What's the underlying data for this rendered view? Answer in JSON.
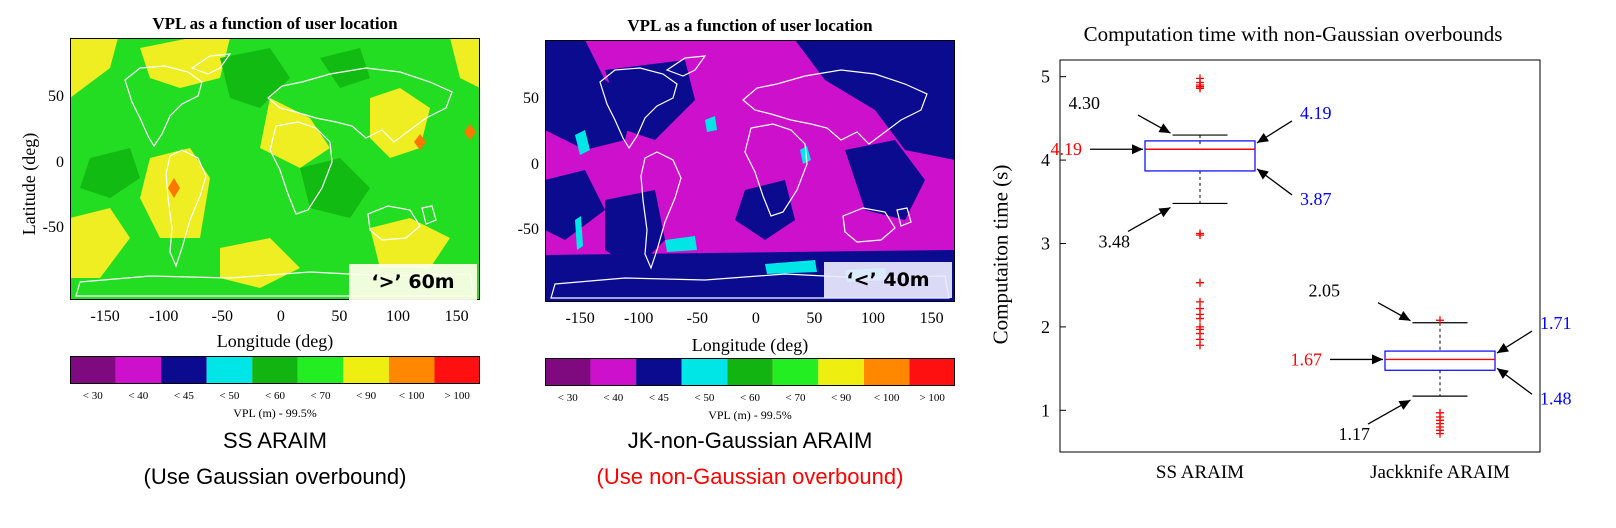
{
  "maps": [
    {
      "title": "VPL as a function of user location",
      "xlabel": "Longitude (deg)",
      "ylabel": "Latitude (deg)",
      "xticks": [
        "-150",
        "-100",
        "-50",
        "0",
        "50",
        "100",
        "150"
      ],
      "yticks": [
        "50",
        "0",
        "-50"
      ],
      "tag": "‘>’ 60m",
      "base_color": "#22dd22",
      "pattern_colors": [
        "#11bb11",
        "#eeee22",
        "#ff7700"
      ],
      "colorbar": {
        "colors": [
          "#7f0a7f",
          "#cc10cc",
          "#0b0b90",
          "#00e6e6",
          "#11b411",
          "#22ee22",
          "#eeee11",
          "#ff8800",
          "#ff1010"
        ],
        "labels": [
          "< 30",
          "< 40",
          "< 45",
          "< 50",
          "< 60",
          "< 70",
          "< 90",
          "< 100",
          "> 100"
        ],
        "title": "VPL (m) - 99.5%"
      },
      "caption_line1": "SS ARAIM",
      "caption_line2": "(Use Gaussian overbound)",
      "caption_line2_color": "#000000"
    },
    {
      "title": "VPL as a function of user location",
      "xlabel": "Longitude (deg)",
      "ylabel": "",
      "xticks": [
        "-150",
        "-100",
        "-50",
        "0",
        "50",
        "100",
        "150"
      ],
      "yticks": [
        "50",
        "0",
        "-50"
      ],
      "tag": "‘<’ 40m",
      "base_color": "#cc10cc",
      "pattern_colors": [
        "#0b0b90",
        "#00e6e6"
      ],
      "colorbar": {
        "colors": [
          "#7f0a7f",
          "#cc10cc",
          "#0b0b90",
          "#00e6e6",
          "#11b411",
          "#22ee22",
          "#eeee11",
          "#ff8800",
          "#ff1010"
        ],
        "labels": [
          "< 30",
          "< 40",
          "< 45",
          "< 50",
          "< 60",
          "< 70",
          "< 90",
          "< 100",
          "> 100"
        ],
        "title": "VPL (m) - 99.5%"
      },
      "caption_line1": "JK-non-Gaussian ARAIM",
      "caption_line2": "(Use non-Gaussian overbound)",
      "caption_line2_color": "#ff0000"
    }
  ],
  "chart_data": {
    "type": "box",
    "title": "Computation time with non-Gaussian overbounds",
    "xlabel": "",
    "ylabel": "Computaiton time (s)",
    "ylim": [
      0.5,
      5.2
    ],
    "yticks": [
      "1",
      "2",
      "3",
      "4",
      "5"
    ],
    "categories": [
      "SS ARAIM",
      "Jackknife ARAIM"
    ],
    "boxes": [
      {
        "category": "SS ARAIM",
        "median": 4.19,
        "q1": 3.87,
        "q3": 4.19,
        "whisker_low": 3.48,
        "whisker_high": 4.3,
        "outliers": [
          4.98,
          4.93,
          4.9,
          4.88,
          4.86,
          3.12,
          3.1,
          2.53,
          2.3,
          2.22,
          2.15,
          2.1,
          2.0,
          1.97,
          1.92,
          1.85,
          1.78
        ],
        "annotations": [
          {
            "text": "4.30",
            "color": "#000000"
          },
          {
            "text": "4.19",
            "color": "#0000ff"
          },
          {
            "text": "4.19",
            "color": "#ff0000"
          },
          {
            "text": "3.87",
            "color": "#0000ff"
          },
          {
            "text": "3.48",
            "color": "#000000"
          }
        ]
      },
      {
        "category": "Jackknife ARAIM",
        "median": 1.67,
        "q1": 1.48,
        "q3": 1.71,
        "whisker_low": 1.17,
        "whisker_high": 2.05,
        "outliers": [
          2.08,
          0.97,
          0.92,
          0.88,
          0.84,
          0.8,
          0.76,
          0.72
        ],
        "annotations": [
          {
            "text": "2.05",
            "color": "#000000"
          },
          {
            "text": "1.71",
            "color": "#0000ff"
          },
          {
            "text": "1.67",
            "color": "#ff0000"
          },
          {
            "text": "1.48",
            "color": "#0000ff"
          },
          {
            "text": "1.17",
            "color": "#000000"
          }
        ]
      }
    ],
    "box_color": "#0000ff",
    "median_color": "#ff0000",
    "outlier_color": "#ff0000"
  }
}
